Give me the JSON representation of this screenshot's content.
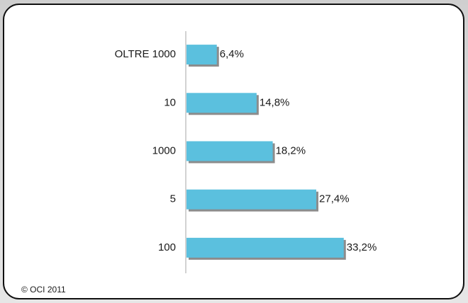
{
  "chart_data": {
    "type": "hbar",
    "categories": [
      "OLTRE 1000",
      "10",
      "1000",
      "5",
      "100"
    ],
    "values": [
      6.4,
      14.8,
      18.2,
      27.4,
      33.2
    ],
    "value_labels": [
      "6,4%",
      "14,8%",
      "18,2%",
      "27,4%",
      "33,2%"
    ],
    "color": "#5bc0de",
    "xlim": [
      0,
      50
    ],
    "source": "© OCI 2011"
  }
}
